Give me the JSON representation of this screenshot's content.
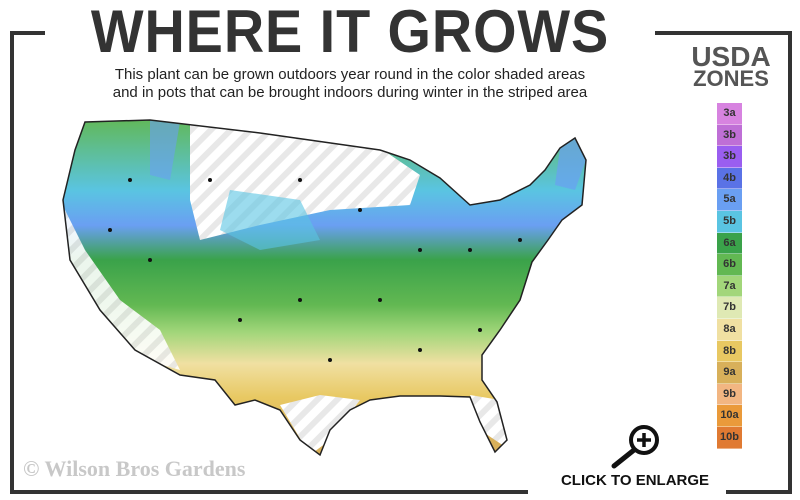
{
  "title": "WHERE IT GROWS",
  "subtitle_line1": "This plant can be grown outdoors year round in the color shaded areas",
  "subtitle_line2": "and in pots that can be brought indoors during winter in the striped area",
  "legend": {
    "title_line1": "USDA",
    "title_line2": "ZONES",
    "zones": [
      {
        "label": "3a",
        "color": "#d783e0"
      },
      {
        "label": "3b",
        "color": "#bf6fd6"
      },
      {
        "label": "3b",
        "color": "#9a5ef0"
      },
      {
        "label": "4b",
        "color": "#5a72e6"
      },
      {
        "label": "5a",
        "color": "#6a9ff2"
      },
      {
        "label": "5b",
        "color": "#5ac4e2"
      },
      {
        "label": "6a",
        "color": "#3aa24a"
      },
      {
        "label": "6b",
        "color": "#62b852"
      },
      {
        "label": "7a",
        "color": "#a2d67a"
      },
      {
        "label": "7b",
        "color": "#dfe9b4"
      },
      {
        "label": "8a",
        "color": "#f0e0a2"
      },
      {
        "label": "8b",
        "color": "#e8c862"
      },
      {
        "label": "9a",
        "color": "#d8b05a"
      },
      {
        "label": "9b",
        "color": "#f2b682"
      },
      {
        "label": "10a",
        "color": "#ea9a3a"
      },
      {
        "label": "10b",
        "color": "#e07a32"
      }
    ]
  },
  "copyright": "© Wilson Bros Gardens",
  "enlarge_label": "CLICK TO ENLARGE",
  "icons": {
    "enlarge": "magnifier-plus-icon"
  }
}
